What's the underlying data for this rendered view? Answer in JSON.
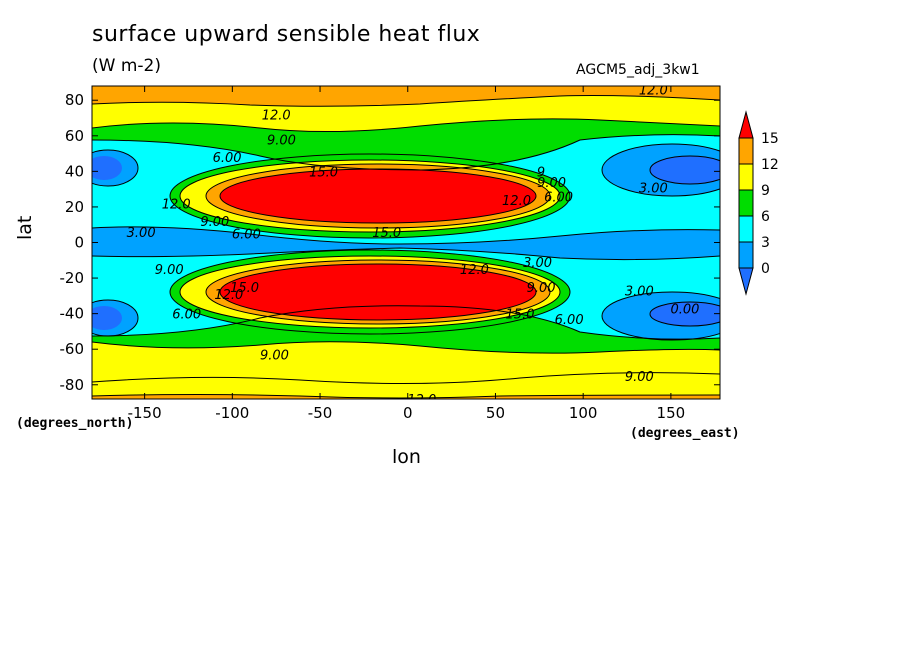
{
  "chart_data": {
    "type": "heatmap",
    "title": "surface upward sensible heat flux",
    "units": "(W m-2)",
    "dataset": "AGCM5_adj_3kw1",
    "xlabel": "lon",
    "ylabel": "lat",
    "x_units": "(degrees_east)",
    "y_units": "(degrees_north)",
    "xlim": [
      -180,
      178
    ],
    "ylim": [
      -88,
      88
    ],
    "x_ticks": [
      -150,
      -100,
      -50,
      0,
      50,
      100,
      150
    ],
    "y_ticks": [
      -80,
      -60,
      -40,
      -20,
      0,
      20,
      40,
      60,
      80
    ],
    "colorbar": {
      "levels": [
        0,
        3,
        6,
        9,
        12,
        15
      ],
      "labels": [
        "0",
        "3",
        "6",
        "9",
        "12",
        "15"
      ],
      "colors": [
        "#1f6fff",
        "#00a2ff",
        "#00ffff",
        "#00dd00",
        "#ffff00",
        "#ffa500",
        "#ff0000"
      ],
      "extend": "both"
    },
    "contour_labels": [
      {
        "text": "12.0",
        "lon": -75,
        "lat": 72
      },
      {
        "text": "9.00",
        "lon": -72,
        "lat": 58
      },
      {
        "text": "6.00",
        "lon": -103,
        "lat": 48
      },
      {
        "text": "15.0",
        "lon": -48,
        "lat": 40
      },
      {
        "text": "12.0",
        "lon": -132,
        "lat": 22
      },
      {
        "text": "9.00",
        "lon": -110,
        "lat": 12
      },
      {
        "text": "6.00",
        "lon": -92,
        "lat": 5
      },
      {
        "text": "3.00",
        "lon": -152,
        "lat": 6
      },
      {
        "text": "15.0",
        "lon": -12,
        "lat": 6
      },
      {
        "text": "9",
        "lon": 76,
        "lat": 40
      },
      {
        "text": "9.00",
        "lon": 82,
        "lat": 34
      },
      {
        "text": "12.0",
        "lon": 62,
        "lat": 24
      },
      {
        "text": "6.00",
        "lon": 86,
        "lat": 26
      },
      {
        "text": "3.00",
        "lon": 140,
        "lat": 31
      },
      {
        "text": "12.0",
        "lon": 140,
        "lat": 86
      },
      {
        "text": "9.00",
        "lon": -136,
        "lat": -15
      },
      {
        "text": "12.0",
        "lon": -102,
        "lat": -29
      },
      {
        "text": "15.0",
        "lon": -93,
        "lat": -25
      },
      {
        "text": "6.00",
        "lon": -126,
        "lat": -40
      },
      {
        "text": "12.0",
        "lon": 38,
        "lat": -15
      },
      {
        "text": "3.00",
        "lon": 74,
        "lat": -11
      },
      {
        "text": "9.00",
        "lon": 76,
        "lat": -25
      },
      {
        "text": "15.0",
        "lon": 64,
        "lat": -40
      },
      {
        "text": "6.00",
        "lon": 92,
        "lat": -43
      },
      {
        "text": "3.00",
        "lon": 132,
        "lat": -27
      },
      {
        "text": "0.00",
        "lon": 158,
        "lat": -37
      },
      {
        "text": "9.00",
        "lon": -76,
        "lat": -63
      },
      {
        "text": "9.00",
        "lon": 132,
        "lat": -75
      },
      {
        "text": "12.0",
        "lon": 8,
        "lat": -88
      }
    ]
  }
}
